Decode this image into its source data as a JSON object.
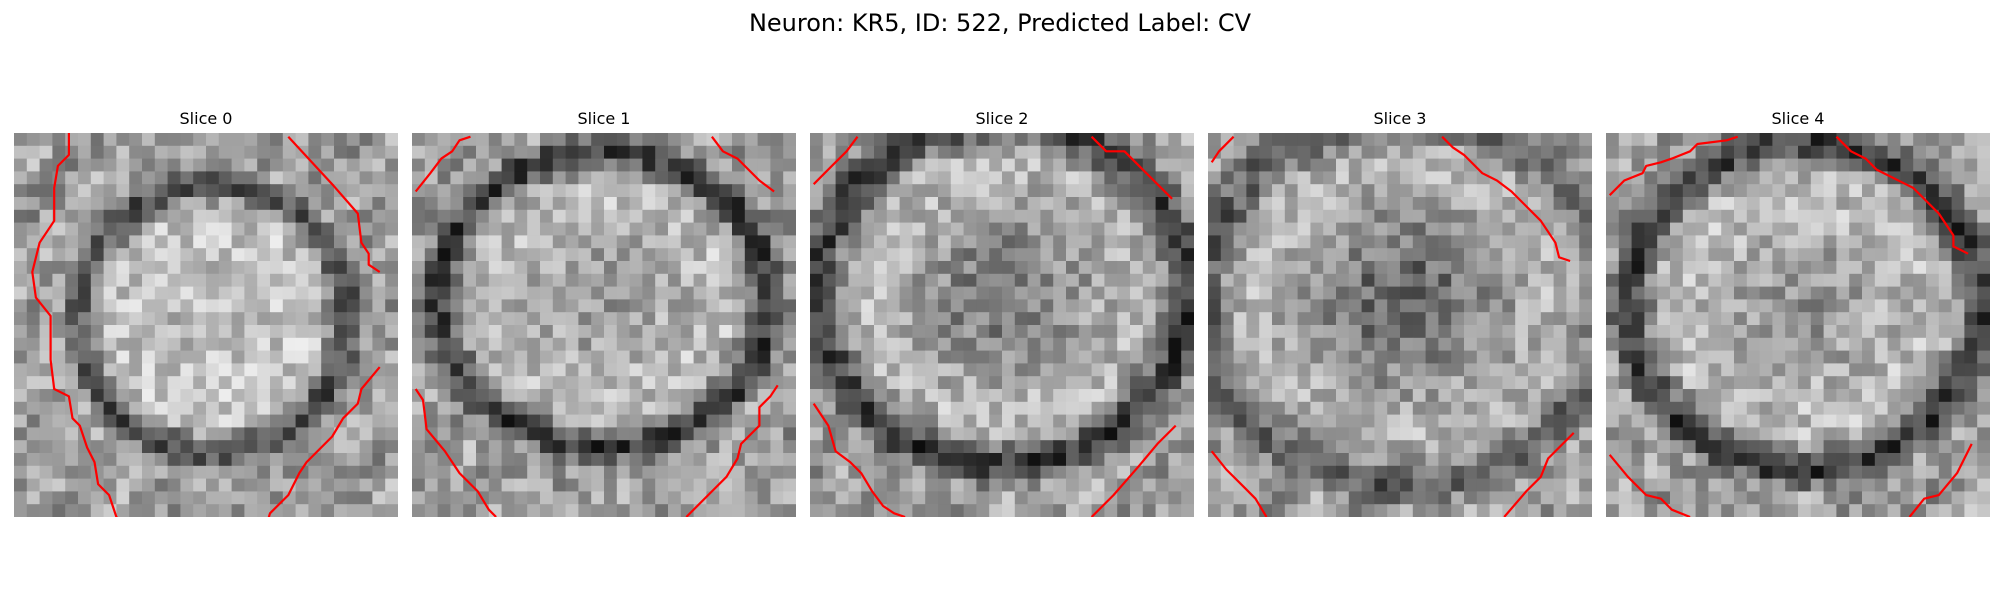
{
  "figure": {
    "title": "Neuron: KR5, ID: 522, Predicted Label: CV"
  },
  "slices": [
    {
      "label": "Slice 0",
      "seed": 11,
      "blob_center": [
        15.5,
        14.5
      ],
      "blob_radius": [
        10.5,
        10.5
      ],
      "ring_strength": 0.9,
      "center_dark": 0.05,
      "contours": [
        [
          [
            1.5,
            0
          ],
          [
            1.5,
            0.6
          ],
          [
            1.2,
            0.9
          ],
          [
            1.1,
            1.5
          ],
          [
            1.1,
            2.4
          ],
          [
            0.7,
            3.0
          ],
          [
            0.5,
            3.8
          ],
          [
            0.6,
            4.5
          ],
          [
            1.0,
            5.0
          ],
          [
            1.0,
            6.2
          ],
          [
            1.1,
            7.0
          ],
          [
            1.5,
            7.2
          ],
          [
            1.6,
            7.8
          ],
          [
            1.8,
            8.0
          ],
          [
            2.0,
            8.6
          ],
          [
            2.2,
            9.0
          ],
          [
            2.3,
            9.6
          ],
          [
            2.6,
            9.9
          ],
          [
            2.8,
            10.5
          ],
          [
            3.4,
            11.0
          ],
          [
            3.6,
            11.2
          ],
          [
            3.9,
            11.4
          ]
        ],
        [
          [
            7.5,
            0.1
          ],
          [
            8.7,
            1.4
          ],
          [
            9.4,
            2.2
          ],
          [
            9.5,
            3.0
          ],
          [
            9.7,
            3.3
          ],
          [
            9.7,
            3.6
          ],
          [
            10.0,
            3.8
          ]
        ],
        [
          [
            10.0,
            6.4
          ],
          [
            9.5,
            7.0
          ],
          [
            9.4,
            7.4
          ],
          [
            9.0,
            7.8
          ],
          [
            8.7,
            8.3
          ],
          [
            8.0,
            9.0
          ],
          [
            7.8,
            9.3
          ],
          [
            7.5,
            9.9
          ],
          [
            7.0,
            10.4
          ],
          [
            6.7,
            11.4
          ]
        ]
      ]
    },
    {
      "label": "Slice 1",
      "seed": 23,
      "blob_center": [
        15.0,
        13.0
      ],
      "blob_radius": [
        13.0,
        11.5
      ],
      "ring_strength": 1.0,
      "center_dark": 0.18,
      "contours": [
        [
          [
            0.1,
            1.6
          ],
          [
            0.5,
            1.1
          ],
          [
            0.8,
            0.7
          ],
          [
            1.1,
            0.5
          ],
          [
            1.3,
            0.2
          ],
          [
            1.6,
            0.1
          ]
        ],
        [
          [
            8.2,
            0.1
          ],
          [
            8.5,
            0.5
          ],
          [
            8.9,
            0.7
          ],
          [
            9.2,
            1.0
          ],
          [
            9.5,
            1.3
          ],
          [
            9.9,
            1.6
          ]
        ],
        [
          [
            0.1,
            7.0
          ],
          [
            0.3,
            7.3
          ],
          [
            0.4,
            8.1
          ],
          [
            0.9,
            8.7
          ],
          [
            1.3,
            9.3
          ],
          [
            1.8,
            9.8
          ],
          [
            2.1,
            10.3
          ],
          [
            2.3,
            10.5
          ]
        ],
        [
          [
            7.5,
            10.5
          ],
          [
            8.2,
            9.8
          ],
          [
            8.6,
            9.4
          ],
          [
            8.9,
            8.9
          ],
          [
            9.0,
            8.5
          ],
          [
            9.2,
            8.3
          ],
          [
            9.5,
            8.0
          ],
          [
            9.5,
            7.5
          ],
          [
            9.8,
            7.2
          ],
          [
            10.0,
            6.9
          ]
        ]
      ]
    },
    {
      "label": "Slice 2",
      "seed": 37,
      "blob_center": [
        15.0,
        12.5
      ],
      "blob_radius": [
        14.5,
        13.5
      ],
      "ring_strength": 1.0,
      "center_dark": 0.32,
      "contours": [
        [
          [
            0.1,
            1.4
          ],
          [
            0.6,
            0.9
          ],
          [
            1.0,
            0.5
          ],
          [
            1.3,
            0.1
          ]
        ],
        [
          [
            7.7,
            0.1
          ],
          [
            8.1,
            0.5
          ],
          [
            8.6,
            0.5
          ],
          [
            9.3,
            1.2
          ],
          [
            9.9,
            1.8
          ]
        ],
        [
          [
            0.1,
            7.4
          ],
          [
            0.3,
            7.7
          ],
          [
            0.5,
            8.0
          ],
          [
            0.7,
            8.7
          ],
          [
            1.1,
            9.0
          ],
          [
            1.4,
            9.3
          ],
          [
            1.7,
            9.8
          ],
          [
            2.0,
            10.2
          ],
          [
            2.3,
            10.4
          ],
          [
            2.6,
            10.5
          ]
        ],
        [
          [
            7.7,
            10.5
          ],
          [
            8.3,
            9.9
          ],
          [
            9.0,
            9.1
          ],
          [
            9.5,
            8.5
          ],
          [
            10.0,
            8.0
          ]
        ]
      ]
    },
    {
      "label": "Slice 3",
      "seed": 49,
      "blob_center": [
        15.5,
        13.0
      ],
      "blob_radius": [
        16.0,
        14.5
      ],
      "ring_strength": 0.75,
      "center_dark": 0.4,
      "contours": [
        [
          [
            0.1,
            0.8
          ],
          [
            0.3,
            0.5
          ],
          [
            0.7,
            0.1
          ]
        ],
        [
          [
            6.4,
            0.1
          ],
          [
            6.7,
            0.4
          ],
          [
            7.0,
            0.6
          ],
          [
            7.5,
            1.1
          ],
          [
            7.9,
            1.3
          ],
          [
            8.3,
            1.6
          ],
          [
            9.1,
            2.4
          ],
          [
            9.5,
            3.0
          ],
          [
            9.6,
            3.4
          ],
          [
            9.9,
            3.5
          ]
        ],
        [
          [
            0.1,
            8.7
          ],
          [
            0.5,
            9.2
          ],
          [
            1.0,
            9.7
          ],
          [
            1.3,
            10.0
          ],
          [
            1.6,
            10.5
          ]
        ],
        [
          [
            8.1,
            10.5
          ],
          [
            8.7,
            9.8
          ],
          [
            9.1,
            9.4
          ],
          [
            9.3,
            8.9
          ],
          [
            9.6,
            8.6
          ],
          [
            10.0,
            8.2
          ]
        ]
      ]
    },
    {
      "label": "Slice 4",
      "seed": 61,
      "blob_center": [
        15.5,
        13.5
      ],
      "blob_radius": [
        13.8,
        12.8
      ],
      "ring_strength": 1.0,
      "center_dark": 0.2,
      "contours": [
        [
          [
            0.1,
            1.7
          ],
          [
            0.5,
            1.3
          ],
          [
            1.0,
            1.1
          ],
          [
            1.1,
            0.9
          ],
          [
            1.5,
            0.8
          ],
          [
            1.8,
            0.7
          ],
          [
            2.3,
            0.5
          ],
          [
            2.5,
            0.3
          ],
          [
            3.3,
            0.2
          ],
          [
            3.6,
            0.1
          ]
        ],
        [
          [
            6.3,
            0.1
          ],
          [
            6.7,
            0.5
          ],
          [
            7.1,
            0.7
          ],
          [
            7.4,
            1.0
          ],
          [
            8.4,
            1.5
          ],
          [
            9.1,
            2.2
          ],
          [
            9.5,
            2.8
          ],
          [
            9.5,
            3.1
          ],
          [
            9.9,
            3.3
          ]
        ],
        [
          [
            0.1,
            8.8
          ],
          [
            0.6,
            9.4
          ],
          [
            1.1,
            9.9
          ],
          [
            1.5,
            10.0
          ],
          [
            1.8,
            10.3
          ],
          [
            2.3,
            10.5
          ]
        ],
        [
          [
            8.3,
            10.5
          ],
          [
            8.7,
            10.0
          ],
          [
            9.1,
            9.9
          ],
          [
            9.6,
            9.3
          ],
          [
            10.0,
            8.5
          ]
        ]
      ]
    }
  ]
}
